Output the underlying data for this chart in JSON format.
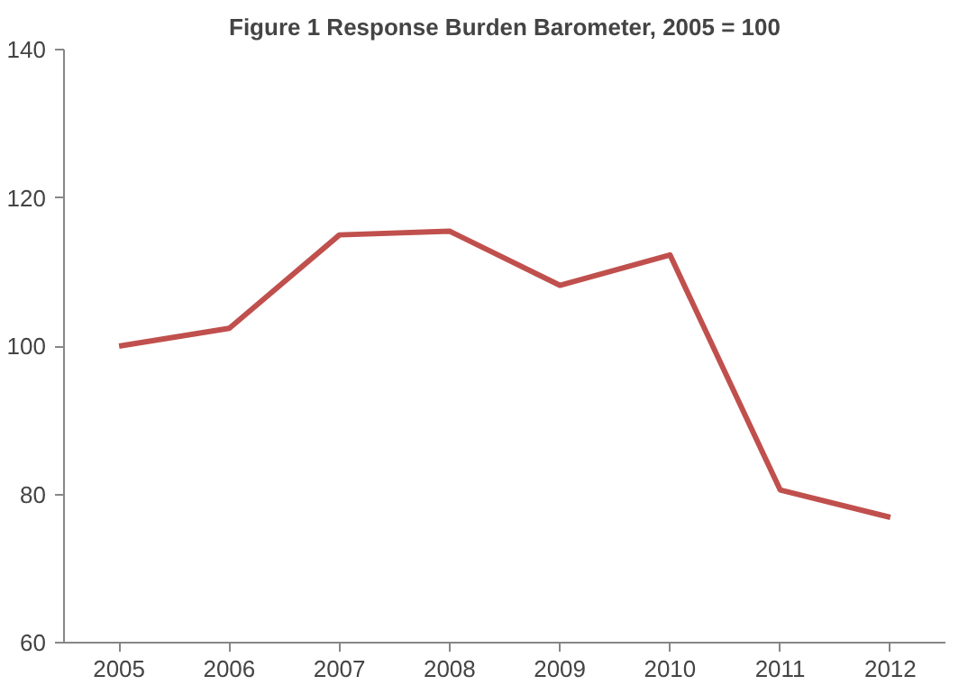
{
  "chart_data": {
    "type": "line",
    "title": "Figure 1 Response Burden Barometer, 2005 = 100",
    "categories": [
      "2005",
      "2006",
      "2007",
      "2008",
      "2009",
      "2010",
      "2011",
      "2012"
    ],
    "series": [
      {
        "color": "#c0504d",
        "values": [
          100,
          102.4,
          115,
          115.5,
          108.2,
          112.3,
          80.6,
          76.9
        ]
      }
    ],
    "ylim": [
      60,
      140
    ],
    "yticks": [
      60,
      80,
      100,
      120,
      140
    ],
    "grid": false,
    "marker": "none",
    "line_style": "solid"
  }
}
